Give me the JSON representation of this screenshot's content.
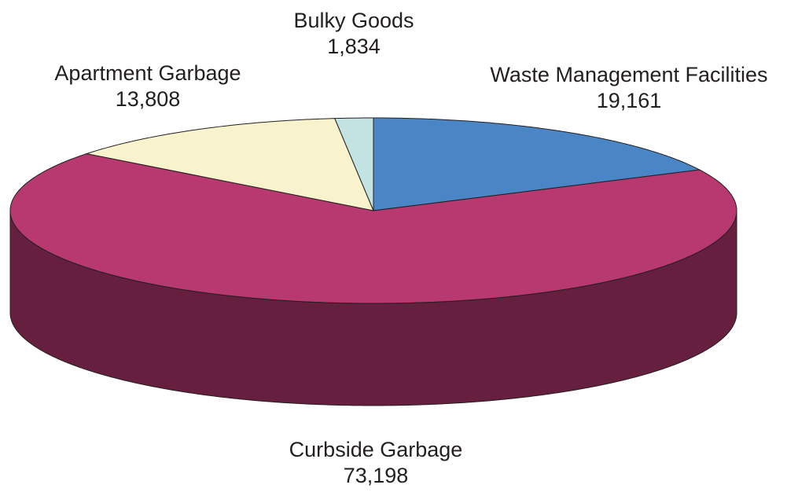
{
  "chart_data": {
    "type": "pie3d",
    "categories": [
      "Waste Management Facilities",
      "Curbside Garbage",
      "Apartment Garbage",
      "Bulky Goods"
    ],
    "values": [
      19161,
      73198,
      13808,
      1834
    ],
    "value_labels": [
      "19,161",
      "73,198",
      "13,808",
      "1,834"
    ],
    "colors": [
      "#4a86c5",
      "#b83870",
      "#f8f3cc",
      "#c3e3e3"
    ]
  }
}
